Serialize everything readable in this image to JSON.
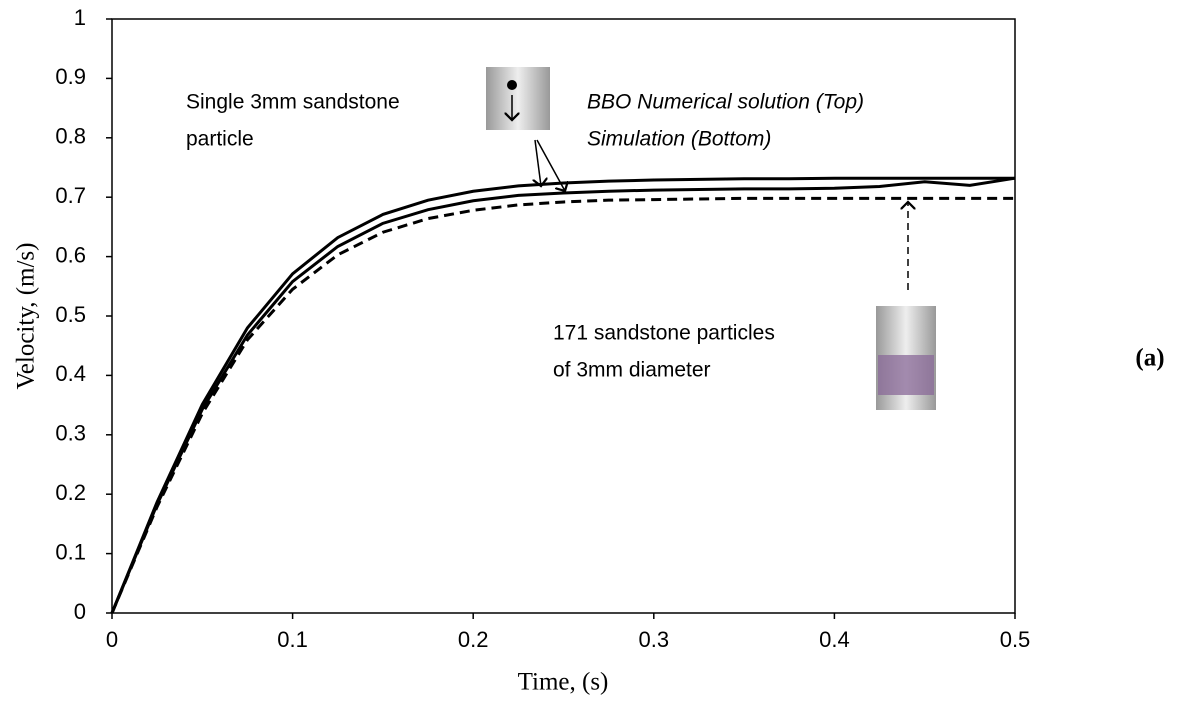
{
  "chart_data": {
    "type": "line",
    "xlabel": "Time, (s)",
    "ylabel": "Velocity, (m/s)",
    "x": [
      0,
      0.025,
      0.05,
      0.075,
      0.1,
      0.125,
      0.15,
      0.175,
      0.2,
      0.225,
      0.25,
      0.275,
      0.3,
      0.325,
      0.35,
      0.375,
      0.4,
      0.425,
      0.45,
      0.475,
      0.5
    ],
    "series": [
      {
        "color": "#000000",
        "dash": false,
        "values": [
          0,
          0.187,
          0.351,
          0.48,
          0.571,
          0.632,
          0.671,
          0.695,
          0.71,
          0.719,
          0.724,
          0.727,
          0.729,
          0.73,
          0.731,
          0.731,
          0.732,
          0.732,
          0.732,
          0.732,
          0.732
        ]
      },
      {
        "color": "#000000",
        "dash": false,
        "values": [
          0,
          0.183,
          0.343,
          0.468,
          0.558,
          0.617,
          0.656,
          0.679,
          0.694,
          0.703,
          0.707,
          0.71,
          0.712,
          0.713,
          0.714,
          0.714,
          0.715,
          0.718,
          0.726,
          0.72,
          0.732
        ]
      },
      {
        "color": "#000000",
        "dash": true,
        "values": [
          0,
          0.179,
          0.336,
          0.46,
          0.545,
          0.603,
          0.641,
          0.664,
          0.678,
          0.687,
          0.692,
          0.695,
          0.696,
          0.697,
          0.698,
          0.698,
          0.698,
          0.698,
          0.698,
          0.698,
          0.698
        ]
      }
    ],
    "xlim": [
      0,
      0.5
    ],
    "xticks": [
      0,
      0.1,
      0.2,
      0.3,
      0.4,
      0.5
    ],
    "ylim": [
      0,
      1
    ],
    "yticks": [
      0,
      0.1,
      0.2,
      0.3,
      0.4,
      0.5,
      0.6,
      0.7,
      0.8,
      0.9,
      1
    ],
    "grid": false,
    "annotations": [
      "Single 3mm sandstone",
      "particle",
      "BBO Numerical solution (Top)",
      "Simulation (Bottom)",
      "171 sandstone particles",
      "of 3mm diameter"
    ],
    "panel_label": "(a)"
  }
}
